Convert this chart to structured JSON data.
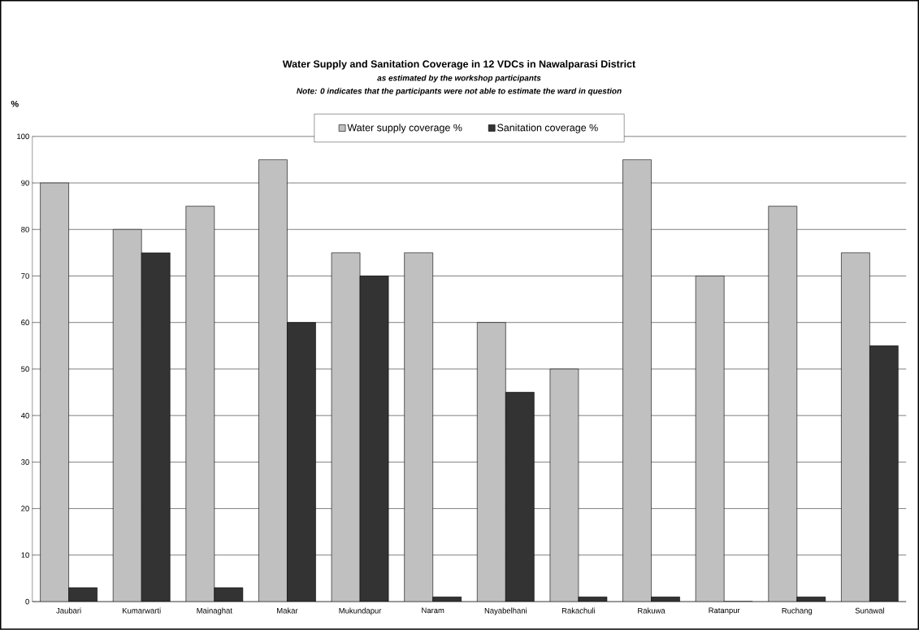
{
  "chart_data": {
    "type": "bar",
    "title": "Water Supply and Sanitation Coverage in 12 VDCs in Nawalparasi District",
    "subtitle": "as estimated by the workshop participants",
    "annotations": [
      "Note: 0 indicates that the participants were not able to estimate the ward in question"
    ],
    "ylabel": "%",
    "categories": [
      "Jaubari",
      "Kumarwarti",
      "Mainaghat",
      "Makar",
      "Mukundapur",
      "Naram",
      "Nayabelhani",
      "Rakachuli",
      "Rakuwa",
      "Ratanpur",
      "Ruchang",
      "Sunawal"
    ],
    "series": [
      {
        "name": "Water supply coverage %",
        "color": "#c0c0c0",
        "values": [
          90,
          80,
          85,
          95,
          75,
          75,
          60,
          50,
          95,
          70,
          85,
          75
        ]
      },
      {
        "name": "Sanitation coverage %",
        "color": "#333333",
        "values": [
          3,
          75,
          3,
          60,
          70,
          1,
          45,
          1,
          1,
          0,
          1,
          55
        ]
      }
    ],
    "ylim": [
      0,
      100
    ],
    "yticks": [
      0,
      10,
      20,
      30,
      40,
      50,
      60,
      70,
      80,
      90,
      100
    ],
    "grid": "y",
    "legend": "top"
  }
}
